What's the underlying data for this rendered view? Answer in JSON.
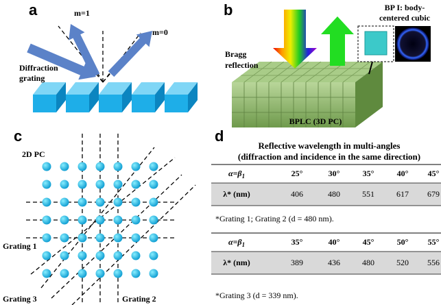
{
  "panel_a": {
    "label": "a",
    "orders": [
      "m=1",
      "m=0"
    ],
    "grating_label": [
      "Diffraction",
      "grating"
    ]
  },
  "panel_b": {
    "label": "b",
    "inset_label": [
      "BP I: body-",
      "centered cubic"
    ],
    "bragg_label": [
      "Bragg",
      "reflection"
    ],
    "block_label": "BPLC (3D PC)"
  },
  "panel_c": {
    "label": "c",
    "title": "2D PC",
    "gratings": [
      "Grating 1",
      "Grating 3",
      "Grating 2"
    ]
  },
  "panel_d": {
    "label": "d",
    "title": [
      "Reflective wavelength in multi-angles",
      "(diffraction and incidence in the same direction)"
    ],
    "tables": [
      {
        "header_label": "α=β",
        "header_sub": "1",
        "angles": [
          "25°",
          "30°",
          "35°",
          "40°",
          "45°"
        ],
        "row_label": "λ* (nm)",
        "values": [
          406,
          480,
          551,
          617,
          679
        ],
        "note": "*Grating 1; Grating 2 (d = 480 nm)."
      },
      {
        "header_label": "α=β",
        "header_sub": "1",
        "angles": [
          "35°",
          "40°",
          "45°",
          "50°",
          "55°"
        ],
        "row_label": "λ* (nm)",
        "values": [
          389,
          436,
          480,
          520,
          556
        ],
        "note": "*Grating 3 (d = 339 nm)."
      }
    ]
  }
}
